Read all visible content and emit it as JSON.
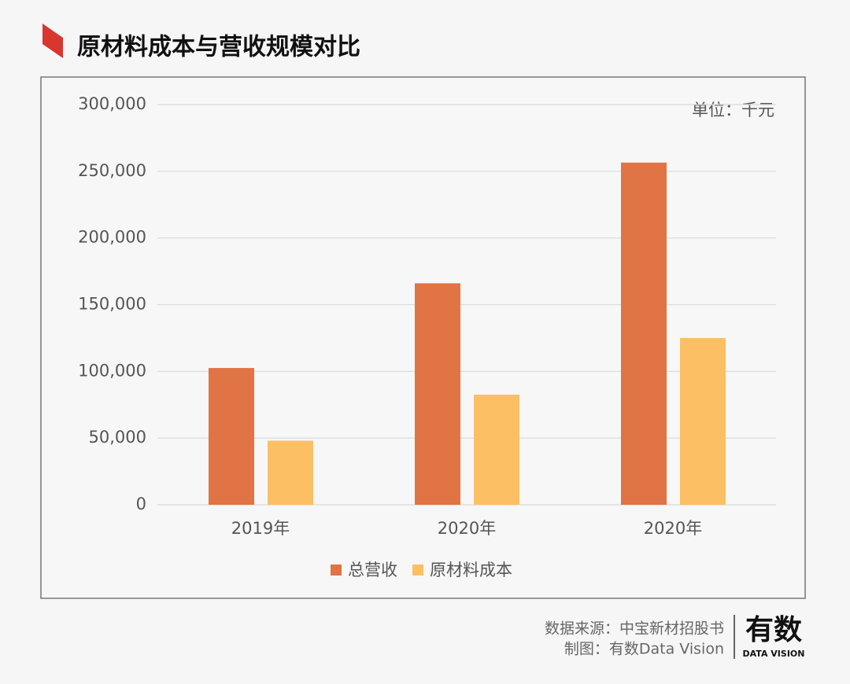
{
  "chart_data": {
    "type": "bar",
    "title": "原材料成本与营收规模对比",
    "unit_note": "单位：千元",
    "categories": [
      "2019年",
      "2020年",
      "2020年"
    ],
    "series": [
      {
        "name": "总营收",
        "color": "#e07444",
        "values": [
          102500,
          166000,
          256500
        ]
      },
      {
        "name": "原材料成本",
        "color": "#fdbf63",
        "values": [
          48000,
          82500,
          125000
        ]
      }
    ],
    "ylim": [
      0,
      300000
    ],
    "yticks": [
      0,
      {
        "value": 50000,
        "label": "50,000"
      },
      {
        "value": 100000,
        "label": "100,000"
      },
      {
        "value": 150000,
        "label": "150,000"
      },
      {
        "value": 200000,
        "label": "200,000"
      },
      {
        "value": 250000,
        "label": "250,000"
      },
      {
        "value": 300000,
        "label": "300,000"
      }
    ],
    "grid": true,
    "legend": "bottom"
  },
  "footer": {
    "source": "数据来源：中宝新材招股书",
    "credit": "制图：有数Data Vision",
    "logo": "有数",
    "logo_sub": "DATA VISION"
  }
}
